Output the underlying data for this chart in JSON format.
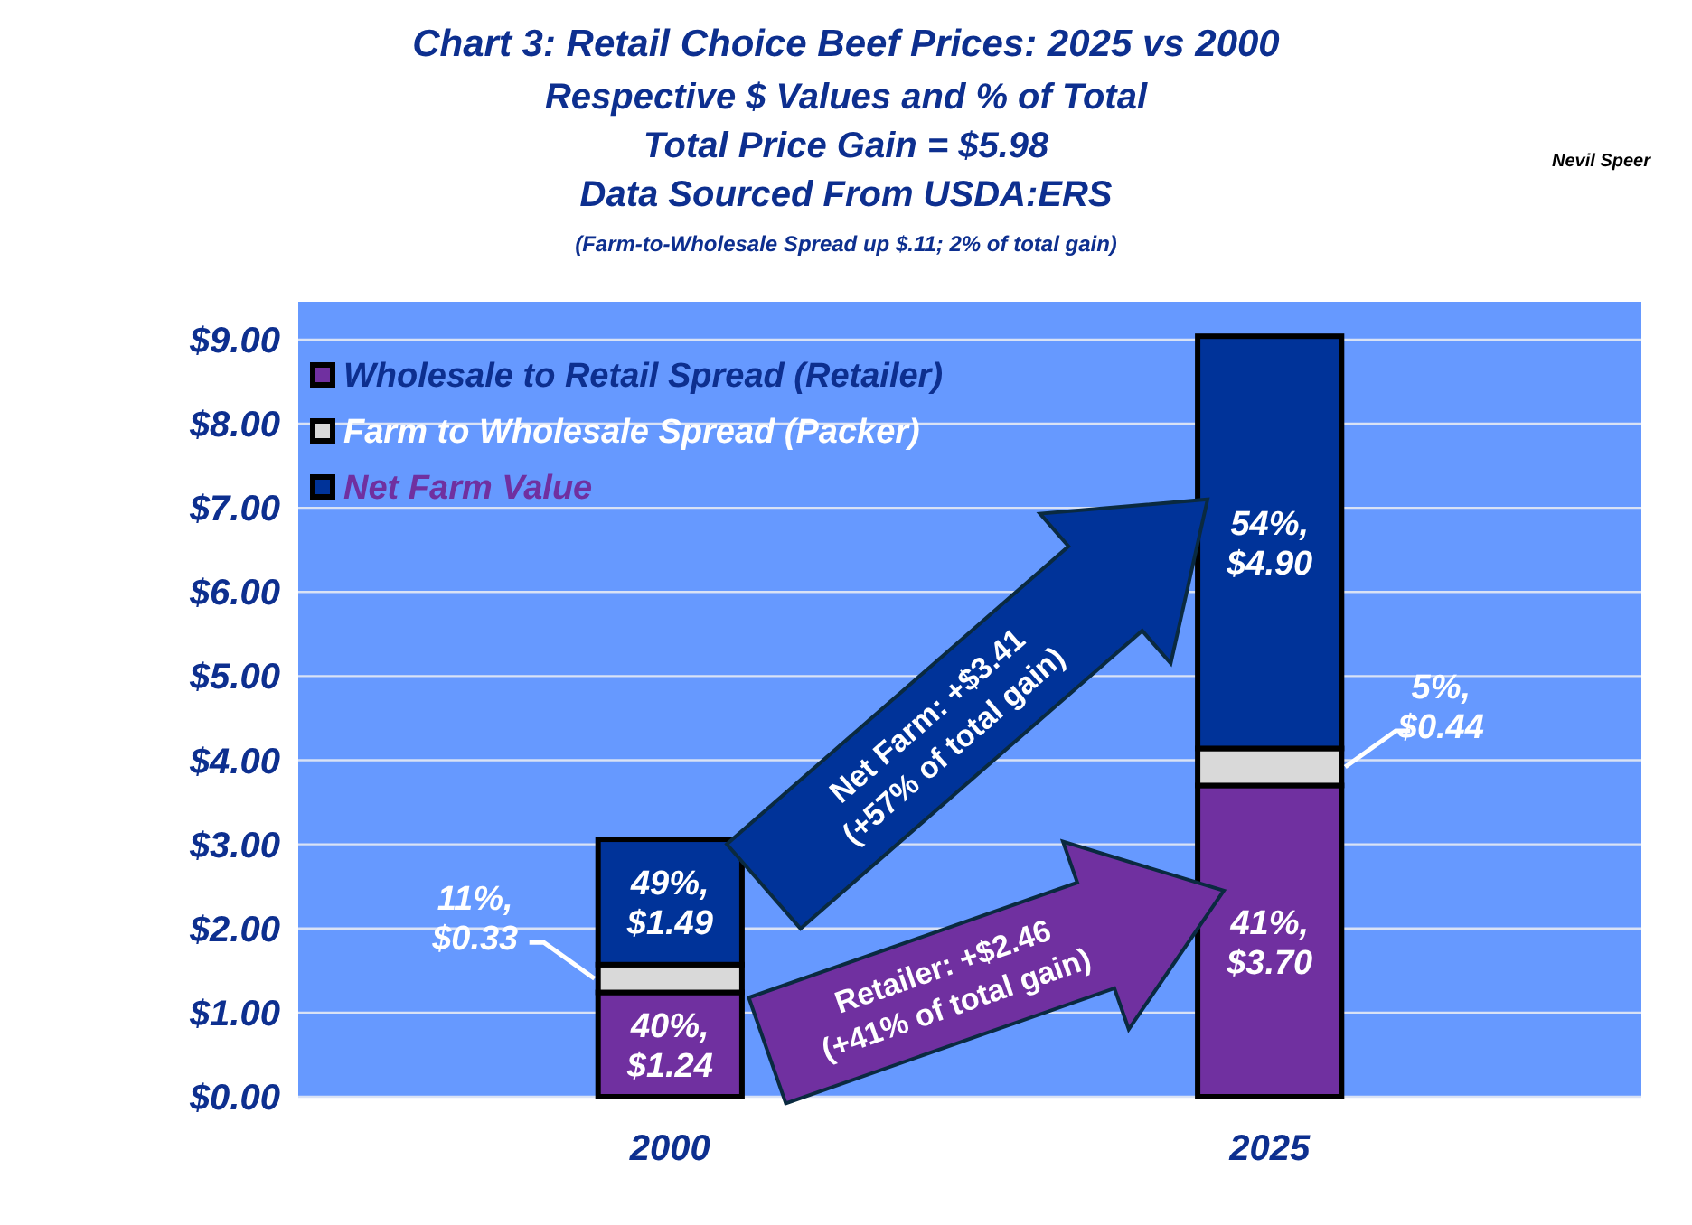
{
  "chart_data": {
    "type": "bar",
    "stacked": true,
    "title": "Chart 3:  Retail Choice Beef Prices: 2025 vs 2000",
    "subtitle": "Respective $ Values and % of Total\nTotal Price Gain = $5.98\nData Sourced From USDA:ERS",
    "annotations": [
      "(Farm-to-Wholesale Spread up $.11; 2% of total gain)",
      "Nevil Speer",
      "Net Farm: +$3.41\n(+57% of total gain)",
      "Retailer: +$2.46\n(+41% of total gain)"
    ],
    "categories": [
      "2000",
      "2025"
    ],
    "series": [
      {
        "name": "Wholesale to Retail Spread (Retailer)",
        "color": "#7030a0",
        "values": [
          1.24,
          3.7
        ],
        "value_labels": [
          "40%,\n$1.24",
          "41%,\n$3.70"
        ]
      },
      {
        "name": "Farm to Wholesale Spread (Packer)",
        "color": "#d9d9d9",
        "values": [
          0.33,
          0.44
        ],
        "value_labels": [
          "11%,\n$0.33",
          "5%,\n$0.44"
        ]
      },
      {
        "name": "Net Farm Value",
        "color": "#003399",
        "values": [
          1.49,
          4.9
        ],
        "value_labels": [
          "49%,\n$1.49",
          "54%,\n$4.90"
        ]
      }
    ],
    "ylim": [
      0,
      9.45
    ],
    "yticks": [
      {
        "value": 0,
        "label": "$0.00"
      },
      {
        "value": 1,
        "label": "$1.00"
      },
      {
        "value": 2,
        "label": "$2.00"
      },
      {
        "value": 3,
        "label": "$3.00"
      },
      {
        "value": 4,
        "label": "$4.00"
      },
      {
        "value": 5,
        "label": "$5.00"
      },
      {
        "value": 6,
        "label": "$6.00"
      },
      {
        "value": 7,
        "label": "$7.00"
      },
      {
        "value": 8,
        "label": "$8.00"
      },
      {
        "value": 9,
        "label": "$9.00"
      }
    ],
    "grid": "y",
    "legend": "top left"
  }
}
